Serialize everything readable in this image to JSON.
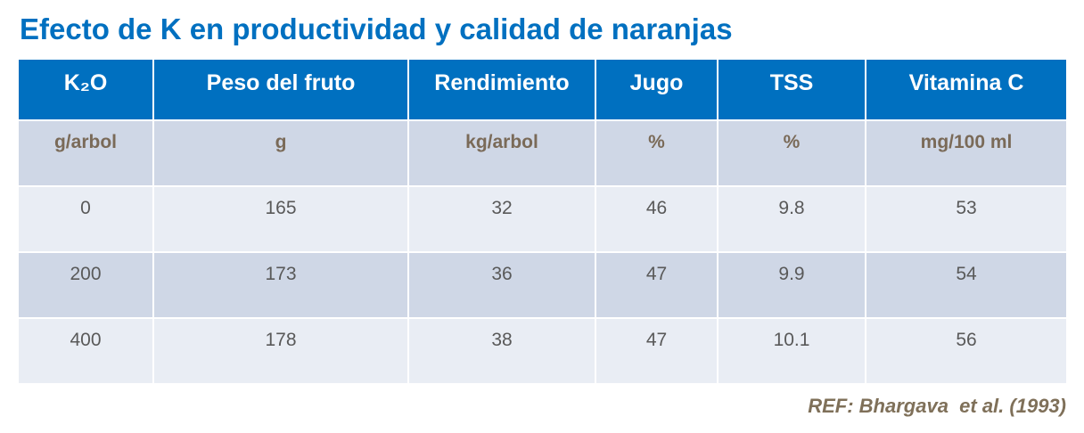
{
  "title": "Efecto de K en productividad y calidad de naranjas",
  "table": {
    "header": [
      "K₂O",
      "Peso del fruto",
      "Rendimiento",
      "Jugo",
      "TSS",
      "Vitamina C"
    ],
    "units": [
      "g/arbol",
      "g",
      "kg/arbol",
      "%",
      "%",
      "mg/100 ml"
    ],
    "rows": [
      [
        "0",
        "165",
        "32",
        "46",
        "9.8",
        "53"
      ],
      [
        "200",
        "173",
        "36",
        "47",
        "9.9",
        "54"
      ],
      [
        "400",
        "178",
        "38",
        "47",
        "10.1",
        "56"
      ]
    ]
  },
  "reference": "REF: Bhargava  et al. (1993)"
}
